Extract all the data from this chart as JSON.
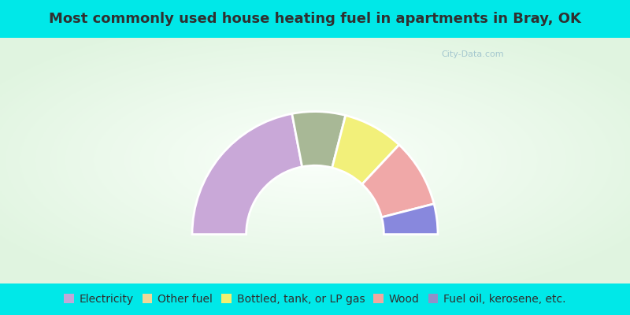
{
  "title": "Most commonly used house heating fuel in apartments in Bray, OK",
  "segments": [
    {
      "label": "Fuel oil, kerosene, etc.",
      "value": 44,
      "color": "#c9a8d8"
    },
    {
      "label": "Other fuel",
      "value": 14,
      "color": "#a8b896"
    },
    {
      "label": "Bottled, tank, or LP gas",
      "value": 16,
      "color": "#f2f07a"
    },
    {
      "label": "Wood",
      "value": 18,
      "color": "#f0a8a8"
    },
    {
      "label": "Electricity",
      "value": 8,
      "color": "#8888dd"
    }
  ],
  "legend_order": [
    "Electricity",
    "Other fuel",
    "Bottled, tank, or LP gas",
    "Wood",
    "Fuel oil, kerosene, etc."
  ],
  "legend_colors": {
    "Electricity": "#c0a8d8",
    "Other fuel": "#f0d898",
    "Bottled, tank, or LP gas": "#f0f070",
    "Wood": "#f0a8a0",
    "Fuel oil, kerosene, etc.": "#9090c8"
  },
  "background_color": "#00e8e8",
  "title_color": "#303030",
  "title_fontsize": 13,
  "legend_text_color": "#303030",
  "legend_fontsize": 10,
  "watermark": "City-Data.com",
  "outer_r": 1.25,
  "inner_r": 0.7
}
